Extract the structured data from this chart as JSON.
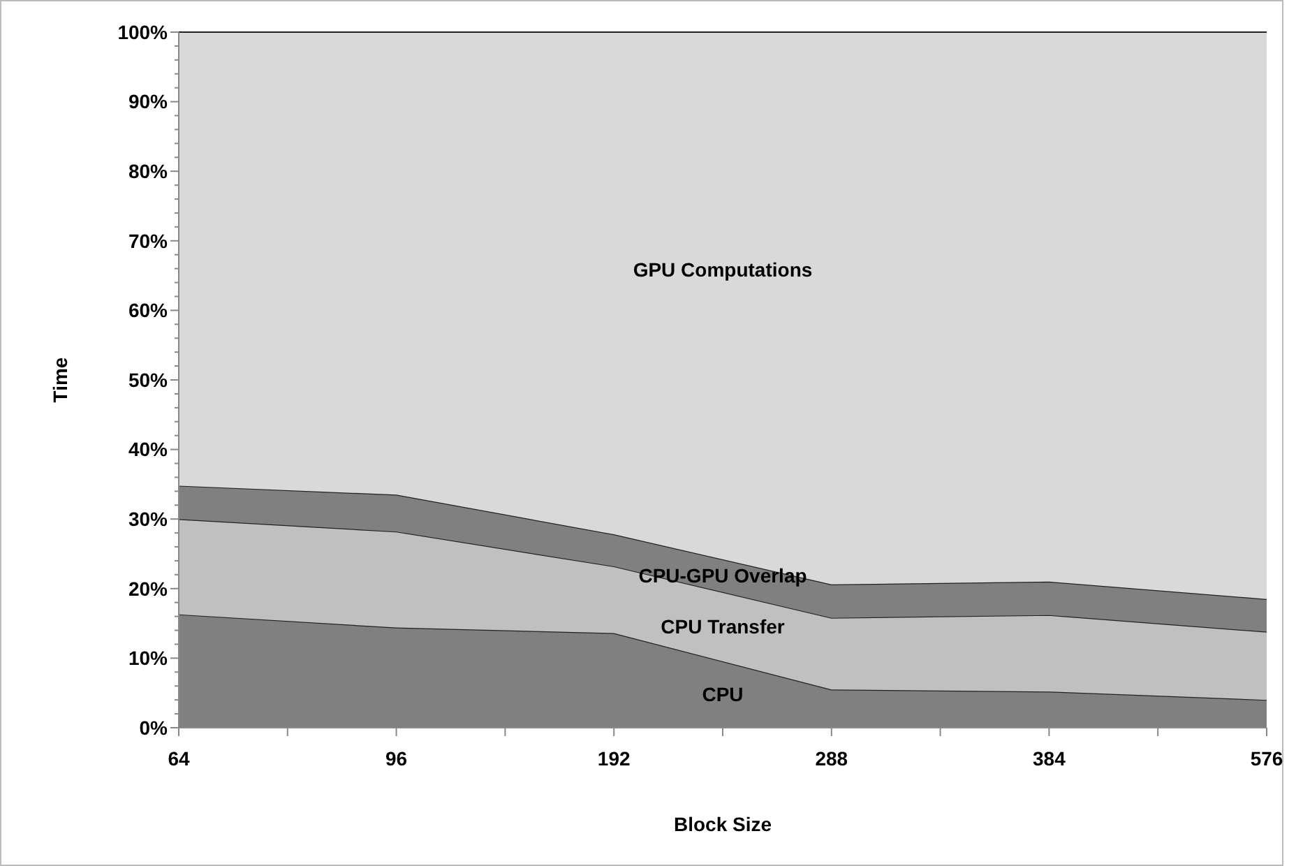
{
  "chart_data": {
    "type": "area",
    "stacked": true,
    "xlabel": "Block Size",
    "ylabel": "Time",
    "categories": [
      "64",
      "96",
      "192",
      "288",
      "384",
      "576"
    ],
    "series": [
      {
        "name": "CPU",
        "color": "#808080",
        "values": [
          16.3,
          14.4,
          13.6,
          5.5,
          5.2,
          4.0
        ]
      },
      {
        "name": "CPU Transfer",
        "color": "#c0c0c0",
        "values": [
          13.7,
          13.8,
          9.6,
          10.3,
          11.0,
          9.8
        ]
      },
      {
        "name": "CPU-GPU Overlap",
        "color": "#808080",
        "values": [
          4.8,
          5.3,
          4.6,
          4.8,
          4.8,
          4.7
        ]
      },
      {
        "name": "GPU Computations",
        "color": "#d9d9d9",
        "values": [
          65.2,
          66.5,
          72.2,
          79.4,
          79.0,
          81.5
        ]
      }
    ],
    "ylim": [
      0,
      100
    ],
    "yticks": [
      {
        "value": 0,
        "label": "0%"
      },
      {
        "value": 10,
        "label": "10%"
      },
      {
        "value": 20,
        "label": "20%"
      },
      {
        "value": 30,
        "label": "30%"
      },
      {
        "value": 40,
        "label": "40%"
      },
      {
        "value": 50,
        "label": "50%"
      },
      {
        "value": 60,
        "label": "60%"
      },
      {
        "value": 70,
        "label": "70%"
      },
      {
        "value": 80,
        "label": "80%"
      },
      {
        "value": 90,
        "label": "90%"
      },
      {
        "value": 100,
        "label": "100%"
      }
    ],
    "grid": false,
    "legend": false
  }
}
